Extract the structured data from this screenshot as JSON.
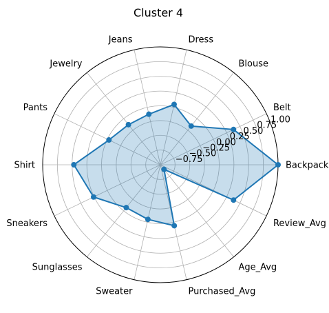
{
  "chart_data": {
    "type": "radar",
    "title": "Cluster 4",
    "categories": [
      "Backpack",
      "Belt",
      "Blouse",
      "Dress",
      "Jeans",
      "Jewelry",
      "Pants",
      "Shirt",
      "Sneakers",
      "Sunglasses",
      "Sweater",
      "Purchased_Avg",
      "Age_Avg",
      "Review_Avg"
    ],
    "rlim": [
      -1.0,
      1.0
    ],
    "r_ticks": [
      -0.75,
      -0.5,
      -0.25,
      0.0,
      0.25,
      0.5,
      0.75,
      1.0
    ],
    "r_tick_labels": [
      "−0.75",
      "−0.50",
      "−0.25",
      "0.00",
      "0.25",
      "0.50",
      "0.75",
      "1.00"
    ],
    "grid": true,
    "series": [
      {
        "values": [
          1.0,
          0.38,
          -0.16,
          0.05,
          -0.12,
          -0.13,
          -0.03,
          0.47,
          0.26,
          -0.07,
          -0.05,
          0.06,
          -0.9,
          0.38
        ],
        "color": "#1f77b4",
        "fill": true
      }
    ]
  }
}
